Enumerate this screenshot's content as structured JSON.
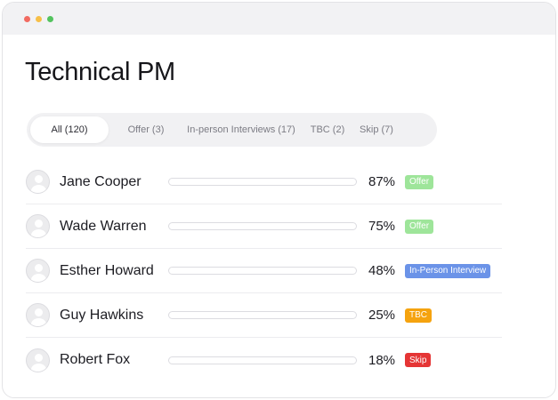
{
  "window": {
    "controls": [
      "close",
      "minimize",
      "maximize"
    ],
    "colors": {
      "close": "#f26b61",
      "minimize": "#f7bf48",
      "maximize": "#53c35e"
    }
  },
  "page": {
    "title": "Technical PM"
  },
  "tabs": [
    {
      "label": "All (120)",
      "active": true
    },
    {
      "label": "Offer (3)",
      "active": false
    },
    {
      "label": "In-person Interviews (17)",
      "active": false
    },
    {
      "label": "TBC (2)",
      "active": false
    },
    {
      "label": "Skip (7)",
      "active": false
    }
  ],
  "candidates": [
    {
      "name": "Jane Cooper",
      "score": 87,
      "score_label": "87%",
      "status": "Offer",
      "status_color": "#9ee59a",
      "bar_color": "#98e391"
    },
    {
      "name": "Wade Warren",
      "score": 75,
      "score_label": "75%",
      "status": "Offer",
      "status_color": "#9ee59a",
      "bar_color": "#98e391"
    },
    {
      "name": "Esther Howard",
      "score": 48,
      "score_label": "48%",
      "status": "In-Person Interview",
      "status_color": "#6b93e8",
      "bar_color": "#6b93e8"
    },
    {
      "name": "Guy Hawkins",
      "score": 25,
      "score_label": "25%",
      "status": "TBC",
      "status_color": "#f5a30f",
      "bar_color": "#f5a30f"
    },
    {
      "name": "Robert Fox",
      "score": 18,
      "score_label": "18%",
      "status": "Skip",
      "status_color": "#e53535",
      "bar_color": "#e53535"
    }
  ]
}
